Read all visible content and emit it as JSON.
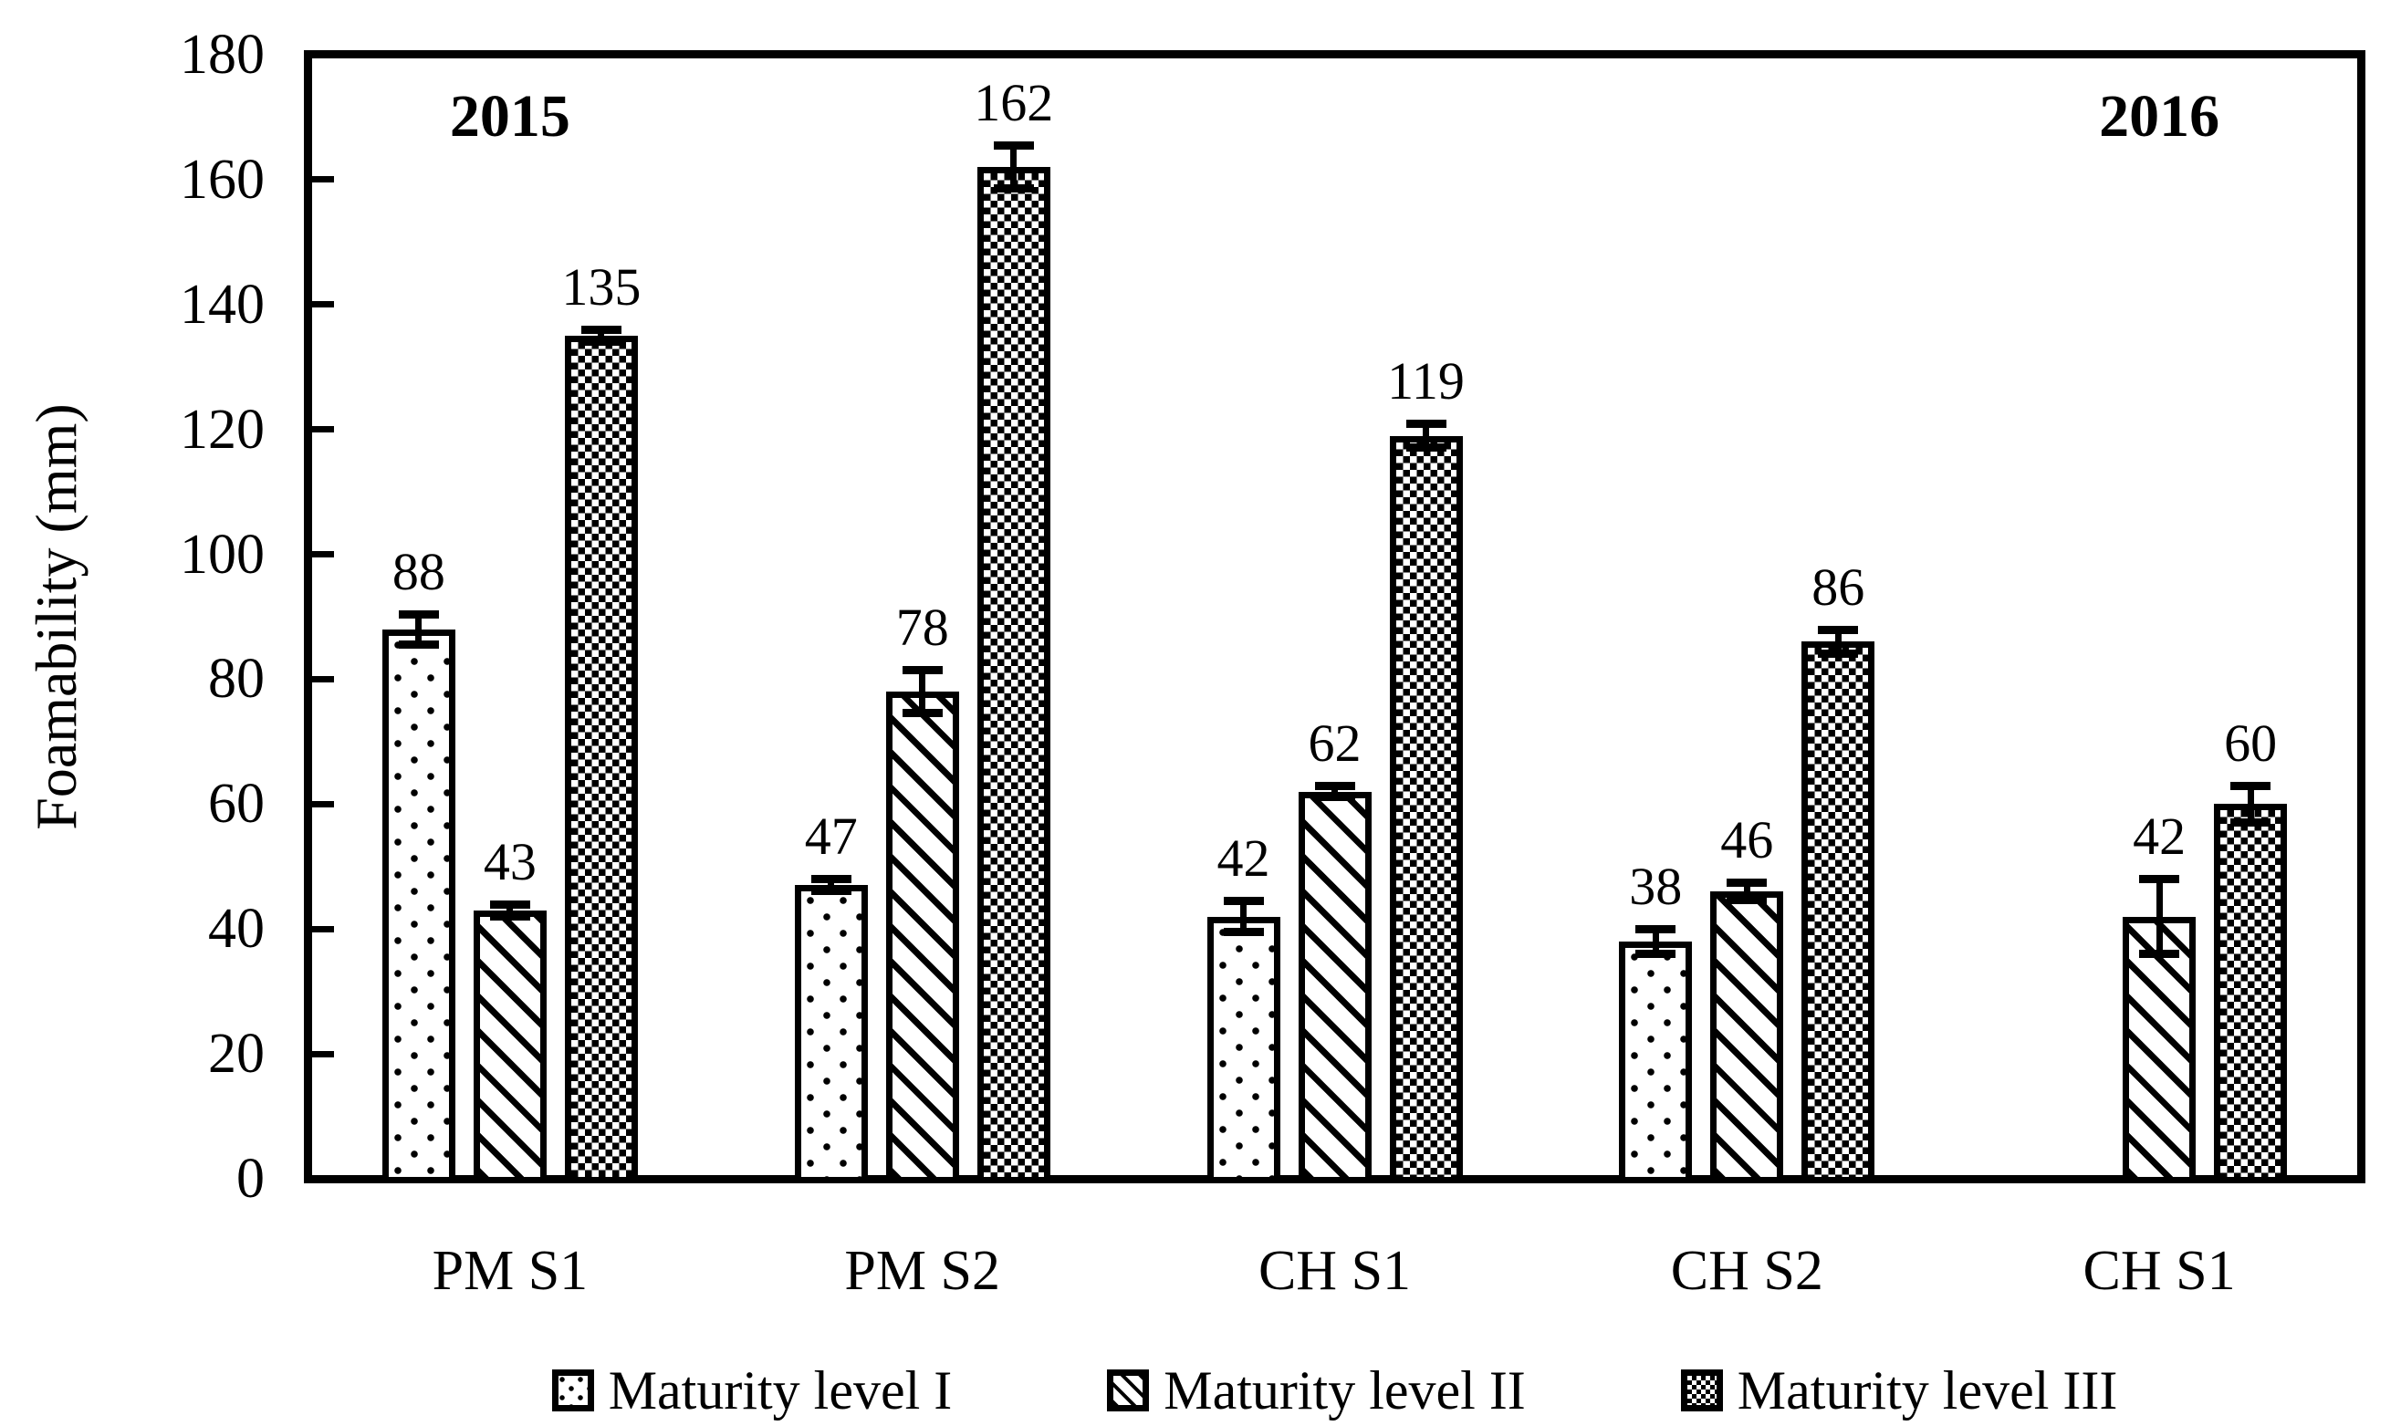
{
  "figure": {
    "background_color": "#ffffff",
    "ink_color": "#000000"
  },
  "chart_data": {
    "type": "bar",
    "title": "",
    "ylabel": "Foamability (mm)",
    "xlabel": "",
    "ylim": [
      0,
      180
    ],
    "ytick_step": 20,
    "ytick_labels": [
      "0",
      "20",
      "40",
      "60",
      "80",
      "100",
      "120",
      "140",
      "160",
      "180"
    ],
    "grid": "off",
    "legend_position": "bottom",
    "categories": [
      "PM S1",
      "PM S2",
      "CH S1",
      "CH S2",
      "CH S1"
    ],
    "series": [
      {
        "name": "Maturity level I",
        "pattern": "dots",
        "values": [
          88,
          47,
          42,
          38,
          null
        ],
        "errors": [
          2.5,
          1,
          2.5,
          2,
          null
        ]
      },
      {
        "name": "Maturity level II",
        "pattern": "diagonal",
        "values": [
          43,
          78,
          62,
          46,
          42
        ],
        "errors": [
          1,
          3.5,
          1,
          1.5,
          6
        ]
      },
      {
        "name": "Maturity level III",
        "pattern": "checker",
        "values": [
          135,
          162,
          119,
          86,
          60
        ],
        "errors": [
          1,
          3.5,
          2,
          2,
          3
        ]
      }
    ],
    "bar_value_labels": [
      "88",
      "43",
      "135",
      "47",
      "78",
      "162",
      "42",
      "62",
      "119",
      "38",
      "46",
      "86",
      "42",
      "60"
    ],
    "annotations": [
      {
        "text": "2015",
        "group_index": 0
      },
      {
        "text": "2016",
        "group_index": 4
      }
    ]
  }
}
